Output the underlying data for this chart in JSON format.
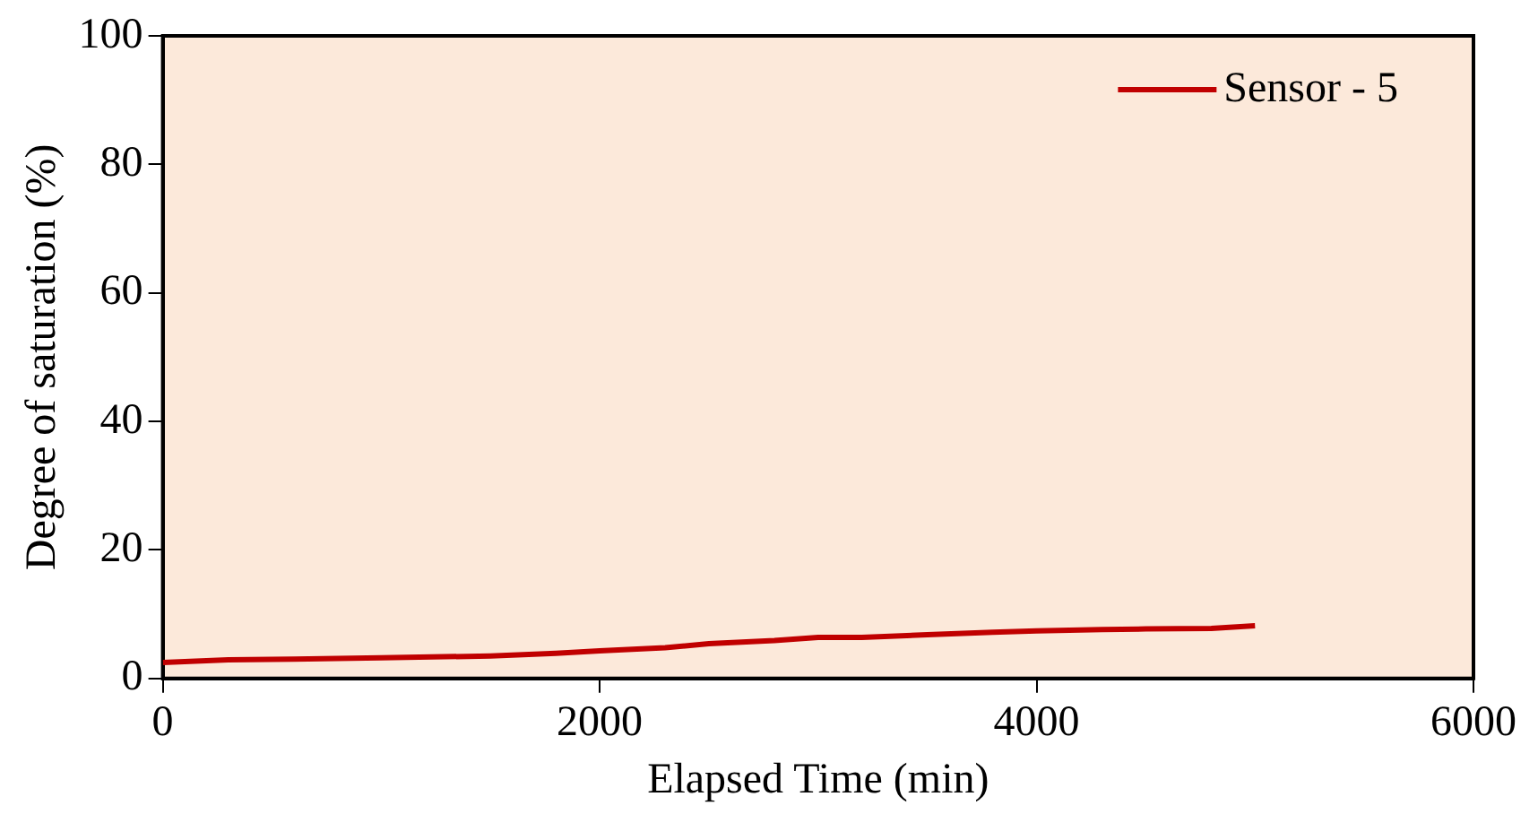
{
  "chart_data": {
    "type": "line",
    "xlabel": "Elapsed Time (min)",
    "ylabel": "Degree of saturation (%)",
    "xlim": [
      0,
      6000
    ],
    "xticks": [
      0,
      2000,
      4000,
      6000
    ],
    "ylim": [
      0,
      100
    ],
    "yticks": [
      0,
      20,
      40,
      60,
      80,
      100
    ],
    "grid": false,
    "legend": "top right",
    "marker": "none",
    "line_style": "solid",
    "series": [
      {
        "name": "Sensor - 5",
        "color": "#c00000",
        "x": [
          0,
          300,
          600,
          1000,
          1500,
          1800,
          2000,
          2300,
          2500,
          2800,
          3000,
          3200,
          3500,
          3800,
          4000,
          4300,
          4500,
          4800,
          5000
        ],
        "values": [
          2.5,
          2.9,
          3.0,
          3.2,
          3.5,
          3.9,
          4.3,
          4.8,
          5.4,
          5.9,
          6.4,
          6.4,
          6.8,
          7.2,
          7.4,
          7.6,
          7.7,
          7.8,
          8.2
        ]
      }
    ]
  }
}
